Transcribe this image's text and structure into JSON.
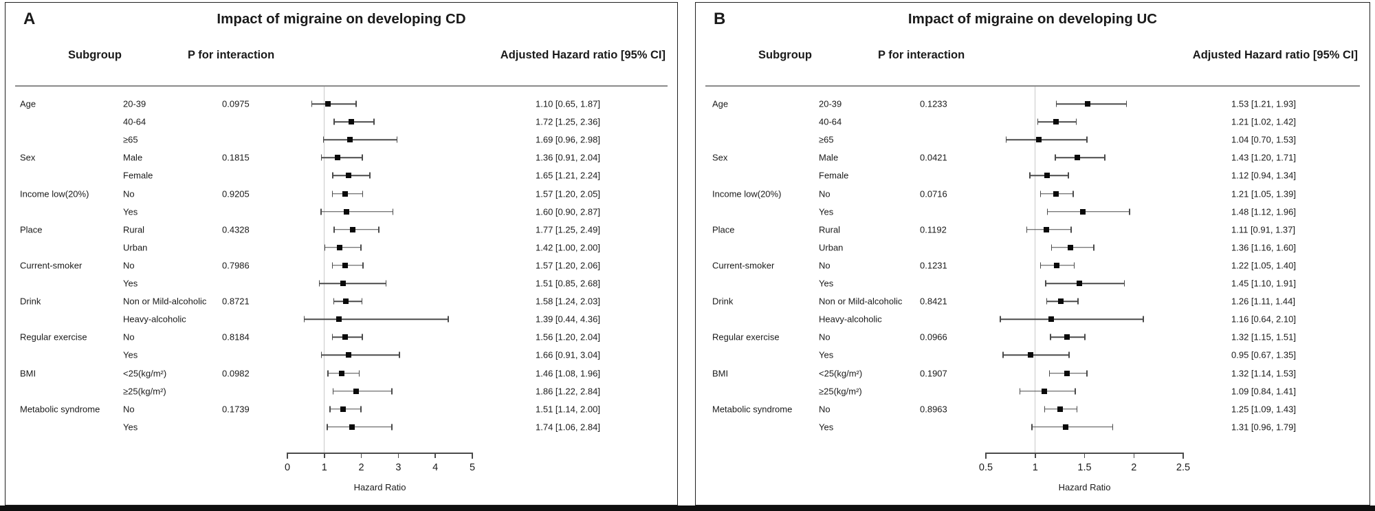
{
  "chart_data": [
    {
      "type": "scatter",
      "subtype": "forest-plot",
      "panel": "A",
      "title": "Impact of migraine on developing CD",
      "columns": [
        "Subgroup",
        "P for interaction",
        "Adjusted Hazard ratio [95% CI]"
      ],
      "xlabel": "Hazard Ratio",
      "xlim": [
        0,
        5
      ],
      "xticks": [
        0,
        1,
        2,
        3,
        4,
        5
      ],
      "xtick_labels": [
        "0",
        "1",
        "2",
        "3",
        "4",
        "5"
      ],
      "ref_line": 1,
      "rows": [
        {
          "group": "Age",
          "level": "20-39",
          "p": "0.0975",
          "hr": 1.1,
          "ci_low": 0.65,
          "ci_high": 1.87,
          "label": "1.10 [0.65, 1.87]"
        },
        {
          "group": "",
          "level": "40-64",
          "p": "",
          "hr": 1.72,
          "ci_low": 1.25,
          "ci_high": 2.36,
          "label": "1.72 [1.25, 2.36]"
        },
        {
          "group": "",
          "level": "≥65",
          "p": "",
          "hr": 1.69,
          "ci_low": 0.96,
          "ci_high": 2.98,
          "label": "1.69 [0.96, 2.98]"
        },
        {
          "group": "Sex",
          "level": "Male",
          "p": "0.1815",
          "hr": 1.36,
          "ci_low": 0.91,
          "ci_high": 2.04,
          "label": "1.36 [0.91, 2.04]"
        },
        {
          "group": "",
          "level": "Female",
          "p": "",
          "hr": 1.65,
          "ci_low": 1.21,
          "ci_high": 2.24,
          "label": "1.65 [1.21, 2.24]"
        },
        {
          "group": "Income low(20%)",
          "level": "No",
          "p": "0.9205",
          "hr": 1.57,
          "ci_low": 1.2,
          "ci_high": 2.05,
          "label": "1.57 [1.20, 2.05]"
        },
        {
          "group": "",
          "level": "Yes",
          "p": "",
          "hr": 1.6,
          "ci_low": 0.9,
          "ci_high": 2.87,
          "label": "1.60 [0.90, 2.87]"
        },
        {
          "group": "Place",
          "level": "Rural",
          "p": "0.4328",
          "hr": 1.77,
          "ci_low": 1.25,
          "ci_high": 2.49,
          "label": "1.77 [1.25, 2.49]"
        },
        {
          "group": "",
          "level": "Urban",
          "p": "",
          "hr": 1.42,
          "ci_low": 1.0,
          "ci_high": 2.0,
          "label": "1.42 [1.00, 2.00]"
        },
        {
          "group": "Current-smoker",
          "level": "No",
          "p": "0.7986",
          "hr": 1.57,
          "ci_low": 1.2,
          "ci_high": 2.06,
          "label": "1.57 [1.20, 2.06]"
        },
        {
          "group": "",
          "level": "Yes",
          "p": "",
          "hr": 1.51,
          "ci_low": 0.85,
          "ci_high": 2.68,
          "label": "1.51 [0.85, 2.68]"
        },
        {
          "group": "Drink",
          "level": "Non or Mild-alcoholic",
          "p": "0.8721",
          "hr": 1.58,
          "ci_low": 1.24,
          "ci_high": 2.03,
          "label": "1.58 [1.24, 2.03]"
        },
        {
          "group": "",
          "level": "Heavy-alcoholic",
          "p": "",
          "hr": 1.39,
          "ci_low": 0.44,
          "ci_high": 4.36,
          "label": "1.39 [0.44, 4.36]"
        },
        {
          "group": "Regular exercise",
          "level": "No",
          "p": "0.8184",
          "hr": 1.56,
          "ci_low": 1.2,
          "ci_high": 2.04,
          "label": "1.56 [1.20, 2.04]"
        },
        {
          "group": "",
          "level": "Yes",
          "p": "",
          "hr": 1.66,
          "ci_low": 0.91,
          "ci_high": 3.04,
          "label": "1.66 [0.91, 3.04]"
        },
        {
          "group": "BMI",
          "level": "<25(kg/m²)",
          "p": "0.0982",
          "hr": 1.46,
          "ci_low": 1.08,
          "ci_high": 1.96,
          "label": "1.46 [1.08, 1.96]"
        },
        {
          "group": "",
          "level": "≥25(kg/m²)",
          "p": "",
          "hr": 1.86,
          "ci_low": 1.22,
          "ci_high": 2.84,
          "label": "1.86 [1.22, 2.84]"
        },
        {
          "group": "Metabolic syndrome",
          "level": "No",
          "p": "0.1739",
          "hr": 1.51,
          "ci_low": 1.14,
          "ci_high": 2.0,
          "label": "1.51 [1.14, 2.00]"
        },
        {
          "group": "",
          "level": "Yes",
          "p": "",
          "hr": 1.74,
          "ci_low": 1.06,
          "ci_high": 2.84,
          "label": "1.74 [1.06, 2.84]"
        }
      ]
    },
    {
      "type": "scatter",
      "subtype": "forest-plot",
      "panel": "B",
      "title": "Impact of migraine on developing UC",
      "columns": [
        "Subgroup",
        "P for interaction",
        "Adjusted Hazard ratio [95% CI]"
      ],
      "xlabel": "Hazard Ratio",
      "xlim": [
        0.5,
        2.5
      ],
      "xticks": [
        0.5,
        1,
        1.5,
        2,
        2.5
      ],
      "xtick_labels": [
        "0.5",
        "1",
        "1.5",
        "2",
        "2.5"
      ],
      "ref_line": 1,
      "rows": [
        {
          "group": "Age",
          "level": "20-39",
          "p": "0.1233",
          "hr": 1.53,
          "ci_low": 1.21,
          "ci_high": 1.93,
          "label": "1.53 [1.21, 1.93]"
        },
        {
          "group": "",
          "level": "40-64",
          "p": "",
          "hr": 1.21,
          "ci_low": 1.02,
          "ci_high": 1.42,
          "label": "1.21 [1.02, 1.42]"
        },
        {
          "group": "",
          "level": "≥65",
          "p": "",
          "hr": 1.04,
          "ci_low": 0.7,
          "ci_high": 1.53,
          "label": "1.04 [0.70, 1.53]"
        },
        {
          "group": "Sex",
          "level": "Male",
          "p": "0.0421",
          "hr": 1.43,
          "ci_low": 1.2,
          "ci_high": 1.71,
          "label": "1.43 [1.20, 1.71]"
        },
        {
          "group": "",
          "level": "Female",
          "p": "",
          "hr": 1.12,
          "ci_low": 0.94,
          "ci_high": 1.34,
          "label": "1.12 [0.94, 1.34]"
        },
        {
          "group": "Income low(20%)",
          "level": "No",
          "p": "0.0716",
          "hr": 1.21,
          "ci_low": 1.05,
          "ci_high": 1.39,
          "label": "1.21 [1.05, 1.39]"
        },
        {
          "group": "",
          "level": "Yes",
          "p": "",
          "hr": 1.48,
          "ci_low": 1.12,
          "ci_high": 1.96,
          "label": "1.48 [1.12, 1.96]"
        },
        {
          "group": "Place",
          "level": "Rural",
          "p": "0.1192",
          "hr": 1.11,
          "ci_low": 0.91,
          "ci_high": 1.37,
          "label": "1.11 [0.91, 1.37]"
        },
        {
          "group": "",
          "level": "Urban",
          "p": "",
          "hr": 1.36,
          "ci_low": 1.16,
          "ci_high": 1.6,
          "label": "1.36 [1.16, 1.60]"
        },
        {
          "group": "Current-smoker",
          "level": "No",
          "p": "0.1231",
          "hr": 1.22,
          "ci_low": 1.05,
          "ci_high": 1.4,
          "label": "1.22 [1.05, 1.40]"
        },
        {
          "group": "",
          "level": "Yes",
          "p": "",
          "hr": 1.45,
          "ci_low": 1.1,
          "ci_high": 1.91,
          "label": "1.45 [1.10, 1.91]"
        },
        {
          "group": "Drink",
          "level": "Non or Mild-alcoholic",
          "p": "0.8421",
          "hr": 1.26,
          "ci_low": 1.11,
          "ci_high": 1.44,
          "label": "1.26 [1.11, 1.44]"
        },
        {
          "group": "",
          "level": "Heavy-alcoholic",
          "p": "",
          "hr": 1.16,
          "ci_low": 0.64,
          "ci_high": 2.1,
          "label": "1.16 [0.64, 2.10]"
        },
        {
          "group": "Regular exercise",
          "level": "No",
          "p": "0.0966",
          "hr": 1.32,
          "ci_low": 1.15,
          "ci_high": 1.51,
          "label": "1.32 [1.15, 1.51]"
        },
        {
          "group": "",
          "level": "Yes",
          "p": "",
          "hr": 0.95,
          "ci_low": 0.67,
          "ci_high": 1.35,
          "label": "0.95 [0.67, 1.35]"
        },
        {
          "group": "BMI",
          "level": "<25(kg/m²)",
          "p": "0.1907",
          "hr": 1.32,
          "ci_low": 1.14,
          "ci_high": 1.53,
          "label": "1.32 [1.14, 1.53]"
        },
        {
          "group": "",
          "level": "≥25(kg/m²)",
          "p": "",
          "hr": 1.09,
          "ci_low": 0.84,
          "ci_high": 1.41,
          "label": "1.09 [0.84, 1.41]"
        },
        {
          "group": "Metabolic syndrome",
          "level": "No",
          "p": "0.8963",
          "hr": 1.25,
          "ci_low": 1.09,
          "ci_high": 1.43,
          "label": "1.25 [1.09, 1.43]"
        },
        {
          "group": "",
          "level": "Yes",
          "p": "",
          "hr": 1.31,
          "ci_low": 0.96,
          "ci_high": 1.79,
          "label": "1.31 [0.96, 1.79]"
        }
      ]
    }
  ]
}
